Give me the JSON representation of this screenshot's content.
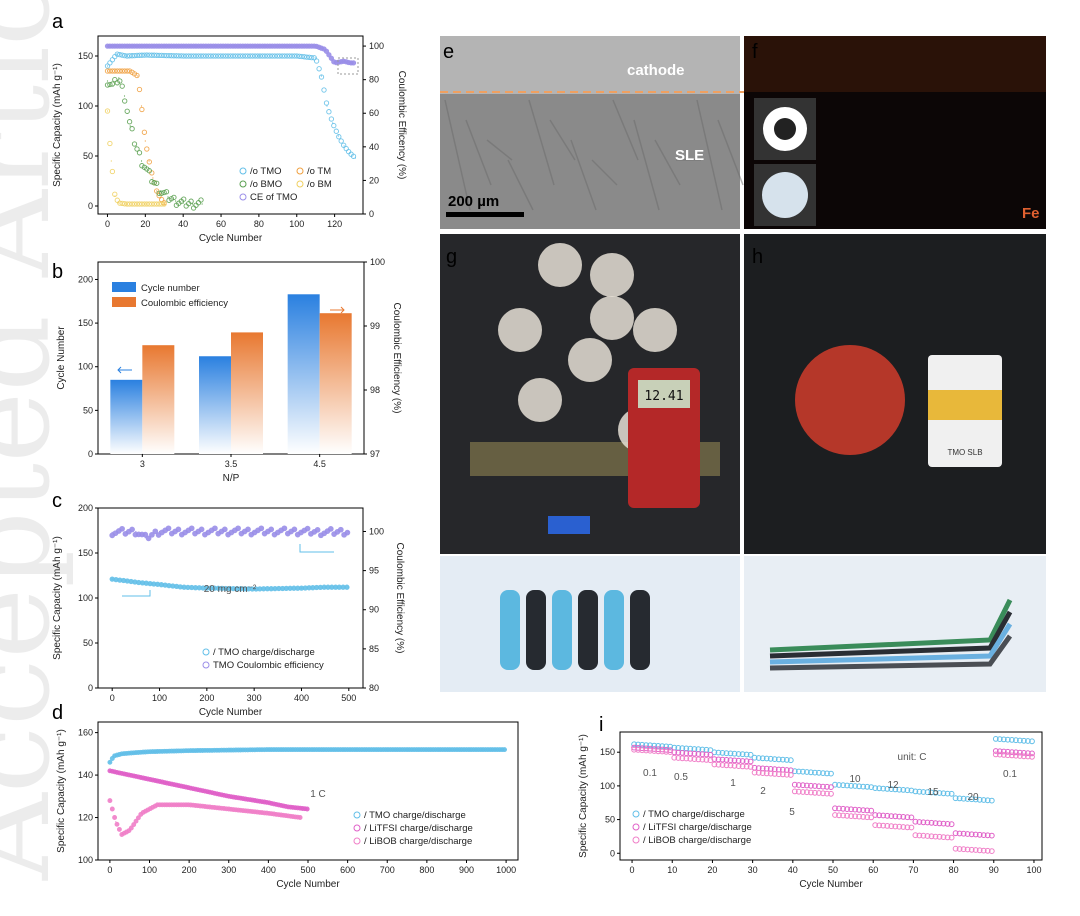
{
  "watermark": "Accepted Article",
  "panel_labels": {
    "a": "a",
    "b": "b",
    "c": "c",
    "d": "d",
    "e": "e",
    "f": "f",
    "g": "g",
    "h": "h",
    "i": "i"
  },
  "images": {
    "e_labels": {
      "cathode": "cathode",
      "sle": "SLE",
      "scale": "200 µm"
    },
    "f_labels": {
      "element": "Fe"
    },
    "g_meter_reading": "12.41",
    "h_pouch_label": "TMO SLB"
  },
  "colors": {
    "tmo": "#62bfe8",
    "litfsi": "#e060c8",
    "libob": "#f07fc8",
    "tm": "#f0a040",
    "bmo": "#5aa050",
    "bm": "#f0d060",
    "ce": "#9a8ee8",
    "bar_blue": "#2a80e0",
    "bar_orange": "#e87830"
  },
  "chart_data": [
    {
      "panel": "a",
      "type": "scatter",
      "xlabel": "Cycle Number",
      "ylabel": "Specific Capacity (mAh g⁻¹)",
      "y2label": "Coulombic Efficency (%)",
      "xlim": [
        -5,
        135
      ],
      "ylim": [
        -8,
        170
      ],
      "y2lim": [
        0,
        106
      ],
      "xticks": [
        0,
        20,
        40,
        60,
        80,
        100,
        120
      ],
      "yticks": [
        0,
        50,
        100,
        150
      ],
      "y2ticks": [
        0,
        20,
        40,
        60,
        80,
        100
      ],
      "legend": [
        "/o TMO",
        "/o TM",
        "/o BMO",
        "/o BM",
        "CE of TMO"
      ],
      "series": [
        {
          "name": "TMO",
          "x": [
            0,
            5,
            10,
            20,
            40,
            60,
            80,
            100,
            110,
            113,
            116,
            119,
            122,
            125,
            128,
            131
          ],
          "y": [
            140,
            152,
            150,
            151,
            150,
            150,
            150,
            150,
            148,
            130,
            100,
            83,
            70,
            60,
            53,
            48
          ]
        },
        {
          "name": "TM",
          "x": [
            0,
            4,
            8,
            12,
            16,
            18,
            20,
            22,
            24,
            26,
            28,
            30
          ],
          "y": [
            135,
            135,
            135,
            135,
            130,
            100,
            65,
            45,
            28,
            15,
            8,
            3
          ]
        },
        {
          "name": "BMO",
          "x": [
            0,
            3,
            6,
            9,
            12,
            15,
            18,
            21,
            24,
            28,
            32,
            36,
            40,
            45,
            50
          ],
          "y": [
            125,
            120,
            128,
            110,
            80,
            60,
            45,
            35,
            25,
            15,
            9,
            5,
            3,
            2,
            2
          ]
        },
        {
          "name": "BM",
          "x": [
            0,
            2,
            4,
            6,
            10,
            20,
            30
          ],
          "y": [
            95,
            45,
            10,
            3,
            2,
            2,
            2
          ]
        },
        {
          "name": "CE of TMO",
          "axis": "right",
          "x": [
            0,
            10,
            20,
            40,
            60,
            80,
            100,
            110,
            115,
            120,
            125,
            128,
            131
          ],
          "y": [
            100,
            100,
            100,
            100,
            100,
            100,
            100,
            100,
            98,
            90,
            91,
            90,
            90
          ]
        }
      ]
    },
    {
      "panel": "b",
      "type": "bar",
      "xlabel": "N/P",
      "ylabel": "Cycle Number",
      "y2label": "Coulombic Efficiency (%)",
      "categories": [
        "3",
        "3.5",
        "4.5"
      ],
      "ylim": [
        0,
        220
      ],
      "y2lim": [
        97,
        100
      ],
      "yticks": [
        0,
        50,
        100,
        150,
        200
      ],
      "y2ticks": [
        97,
        98,
        99,
        100
      ],
      "series": [
        {
          "name": "Cycle number",
          "values": [
            85,
            112,
            183
          ]
        },
        {
          "name": "Coulombic efficiency",
          "axis": "right",
          "values": [
            98.7,
            98.9,
            99.2
          ]
        }
      ]
    },
    {
      "panel": "c",
      "type": "scatter",
      "xlabel": "Cycle Number",
      "ylabel": "Specific Capacity (mAh g⁻¹)",
      "y2label": "Coulombic Efficiency (%)",
      "xlim": [
        -30,
        530
      ],
      "ylim": [
        0,
        200
      ],
      "y2lim": [
        80,
        103
      ],
      "xticks": [
        0,
        100,
        200,
        300,
        400,
        500
      ],
      "yticks": [
        0,
        50,
        100,
        150,
        200
      ],
      "y2ticks": [
        80,
        85,
        90,
        95,
        100
      ],
      "annotation": "20 mg cm⁻²",
      "legend": [
        "/ TMO charge/discharge",
        "TMO Coulombic efficiency"
      ],
      "series": [
        {
          "name": "TMO charge/discharge",
          "x": [
            0,
            30,
            60,
            100,
            150,
            200,
            300,
            400,
            450,
            500
          ],
          "y": [
            121,
            119,
            117,
            115,
            112,
            111,
            110,
            111,
            112,
            112
          ]
        },
        {
          "name": "TMO Coulombic efficiency",
          "axis": "right",
          "x": [
            0,
            50,
            70,
            100,
            200,
            300,
            400,
            450,
            500
          ],
          "y": [
            99.9,
            100,
            99.2,
            100,
            100,
            100,
            100,
            99.9,
            100
          ]
        }
      ]
    },
    {
      "panel": "d",
      "type": "scatter",
      "xlabel": "Cycle Number",
      "ylabel": "Specific Capacity (mAh g⁻¹)",
      "xlim": [
        -30,
        1030
      ],
      "ylim": [
        100,
        165
      ],
      "xticks": [
        0,
        100,
        200,
        300,
        400,
        500,
        600,
        700,
        800,
        900,
        1000
      ],
      "yticks": [
        100,
        120,
        140,
        160
      ],
      "annotation": "1 C",
      "legend": [
        "/ TMO charge/discharge",
        "/ LiTFSI charge/discharge",
        "/ LiBOB charge/discharge"
      ],
      "series": [
        {
          "name": "TMO",
          "x": [
            0,
            10,
            30,
            60,
            100,
            200,
            400,
            600,
            800,
            1000
          ],
          "y": [
            146,
            149,
            150,
            150.5,
            151,
            151.5,
            152,
            152,
            152,
            152
          ]
        },
        {
          "name": "LiTFSI",
          "x": [
            0,
            50,
            100,
            200,
            300,
            400,
            450,
            500
          ],
          "y": [
            142,
            140,
            138,
            134,
            130,
            127,
            125,
            124
          ]
        },
        {
          "name": "LiBOB",
          "x": [
            0,
            15,
            30,
            50,
            80,
            120,
            200,
            300,
            400,
            480
          ],
          "y": [
            128,
            118,
            112,
            114,
            122,
            126,
            126,
            124,
            122,
            120
          ]
        }
      ]
    },
    {
      "panel": "i",
      "type": "scatter",
      "xlabel": "Cycle Number",
      "ylabel": "Specific Capacity (mAh g⁻¹)",
      "xlim": [
        -3,
        102
      ],
      "ylim": [
        -10,
        180
      ],
      "xticks": [
        0,
        10,
        20,
        30,
        40,
        50,
        60,
        70,
        80,
        90,
        100
      ],
      "yticks": [
        0,
        50,
        100,
        150
      ],
      "annotation": "unit: C",
      "rate_labels": [
        "0.1",
        "0.5",
        "1",
        "2",
        "5",
        "10",
        "12",
        "15",
        "20",
        "0.1"
      ],
      "legend": [
        "/ TMO charge/discharge",
        "/ LiTFSI charge/discharge",
        "/ LiBOB charge/discharge"
      ],
      "series": [
        {
          "name": "TMO",
          "x": [
            5,
            15,
            25,
            35,
            45,
            55,
            65,
            75,
            85,
            95
          ],
          "y": [
            160,
            155,
            148,
            140,
            120,
            100,
            95,
            90,
            80,
            168
          ]
        },
        {
          "name": "LiTFSI",
          "x": [
            5,
            15,
            25,
            35,
            45,
            55,
            65,
            75,
            85,
            95
          ],
          "y": [
            155,
            148,
            138,
            125,
            100,
            65,
            55,
            45,
            28,
            150
          ]
        },
        {
          "name": "LiBOB",
          "x": [
            5,
            15,
            25,
            35,
            45,
            55,
            65,
            75,
            85,
            95
          ],
          "y": [
            152,
            140,
            130,
            118,
            90,
            55,
            40,
            25,
            5,
            145
          ]
        }
      ]
    }
  ]
}
